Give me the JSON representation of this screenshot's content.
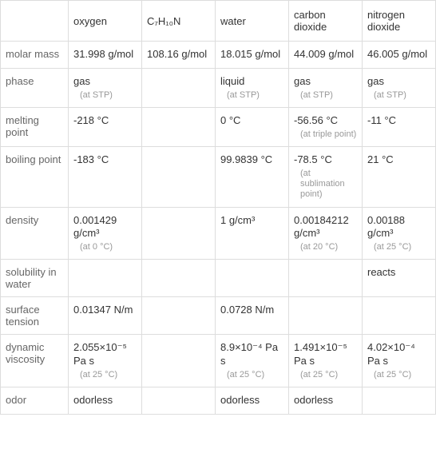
{
  "headers": {
    "blank": "",
    "oxygen": "oxygen",
    "c7h10n": "C₇H₁₀N",
    "water": "water",
    "carbon_dioxide": "carbon dioxide",
    "nitrogen_dioxide": "nitrogen dioxide"
  },
  "rows": {
    "molar_mass": {
      "label": "molar mass",
      "oxygen": {
        "value": "31.998 g/mol"
      },
      "c7h10n": {
        "value": "108.16 g/mol"
      },
      "water": {
        "value": "18.015 g/mol"
      },
      "carbon_dioxide": {
        "value": "44.009 g/mol"
      },
      "nitrogen_dioxide": {
        "value": "46.005 g/mol"
      }
    },
    "phase": {
      "label": "phase",
      "oxygen": {
        "value": "gas",
        "note": "(at STP)"
      },
      "c7h10n": {
        "value": ""
      },
      "water": {
        "value": "liquid",
        "note": "(at STP)"
      },
      "carbon_dioxide": {
        "value": "gas",
        "note": "(at STP)"
      },
      "nitrogen_dioxide": {
        "value": "gas",
        "note": "(at STP)"
      }
    },
    "melting_point": {
      "label": "melting point",
      "oxygen": {
        "value": "-218 °C"
      },
      "c7h10n": {
        "value": ""
      },
      "water": {
        "value": "0 °C"
      },
      "carbon_dioxide": {
        "value": "-56.56 °C",
        "note": "(at triple point)"
      },
      "nitrogen_dioxide": {
        "value": "-11 °C"
      }
    },
    "boiling_point": {
      "label": "boiling point",
      "oxygen": {
        "value": "-183 °C"
      },
      "c7h10n": {
        "value": ""
      },
      "water": {
        "value": "99.9839 °C"
      },
      "carbon_dioxide": {
        "value": "-78.5 °C",
        "note": "(at sublimation point)"
      },
      "nitrogen_dioxide": {
        "value": "21 °C"
      }
    },
    "density": {
      "label": "density",
      "oxygen": {
        "value": "0.001429 g/cm³",
        "note": "(at 0 °C)"
      },
      "c7h10n": {
        "value": ""
      },
      "water": {
        "value": "1 g/cm³"
      },
      "carbon_dioxide": {
        "value": "0.00184212 g/cm³",
        "note": "(at 20 °C)"
      },
      "nitrogen_dioxide": {
        "value": "0.00188 g/cm³",
        "note": "(at 25 °C)"
      }
    },
    "solubility": {
      "label": "solubility in water",
      "oxygen": {
        "value": ""
      },
      "c7h10n": {
        "value": ""
      },
      "water": {
        "value": ""
      },
      "carbon_dioxide": {
        "value": ""
      },
      "nitrogen_dioxide": {
        "value": "reacts"
      }
    },
    "surface_tension": {
      "label": "surface tension",
      "oxygen": {
        "value": "0.01347 N/m"
      },
      "c7h10n": {
        "value": ""
      },
      "water": {
        "value": "0.0728 N/m"
      },
      "carbon_dioxide": {
        "value": ""
      },
      "nitrogen_dioxide": {
        "value": ""
      }
    },
    "dynamic_viscosity": {
      "label": "dynamic viscosity",
      "oxygen": {
        "value": "2.055×10⁻⁵ Pa s",
        "note": "(at 25 °C)"
      },
      "c7h10n": {
        "value": ""
      },
      "water": {
        "value": "8.9×10⁻⁴ Pa s",
        "note": "(at 25 °C)"
      },
      "carbon_dioxide": {
        "value": "1.491×10⁻⁵ Pa s",
        "note": "(at 25 °C)"
      },
      "nitrogen_dioxide": {
        "value": "4.02×10⁻⁴ Pa s",
        "note": "(at 25 °C)"
      }
    },
    "odor": {
      "label": "odor",
      "oxygen": {
        "value": "odorless"
      },
      "c7h10n": {
        "value": ""
      },
      "water": {
        "value": "odorless"
      },
      "carbon_dioxide": {
        "value": "odorless"
      },
      "nitrogen_dioxide": {
        "value": ""
      }
    }
  },
  "row_order": [
    "molar_mass",
    "phase",
    "melting_point",
    "boiling_point",
    "density",
    "solubility",
    "surface_tension",
    "dynamic_viscosity",
    "odor"
  ],
  "col_order": [
    "oxygen",
    "c7h10n",
    "water",
    "carbon_dioxide",
    "nitrogen_dioxide"
  ],
  "styling": {
    "border_color": "#dddddd",
    "text_color": "#333333",
    "label_color": "#666666",
    "note_color": "#999999",
    "background": "#ffffff",
    "font_size_main": 13,
    "font_size_note": 11
  }
}
